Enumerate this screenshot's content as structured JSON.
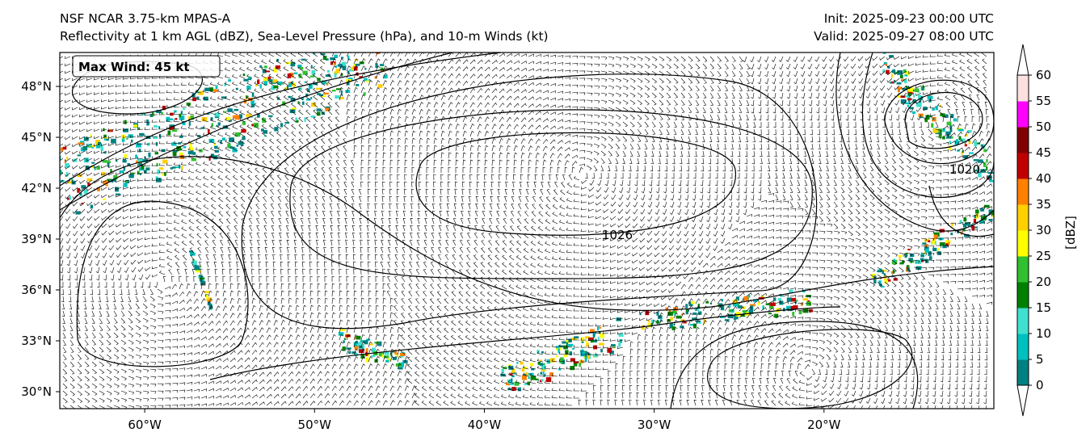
{
  "header": {
    "left_line1": "NSF NCAR 3.75-km MPAS-A",
    "left_line2": "Reflectivity at 1 km AGL (dBZ), Sea-Level Pressure (hPa), and 10-m Winds (kt)",
    "right_line1": "Init: 2025-09-23 00:00 UTC",
    "right_line2": "Valid: 2025-09-27 08:00 UTC"
  },
  "annotation": {
    "max_wind": "Max Wind: 45 kt"
  },
  "map": {
    "lon_range": [
      -65,
      -10
    ],
    "lat_range": [
      29,
      50
    ],
    "lon_ticks": [
      -60,
      -50,
      -40,
      -30,
      -20
    ],
    "lon_tick_labels": [
      "60°W",
      "50°W",
      "40°W",
      "30°W",
      "20°W"
    ],
    "lat_ticks": [
      30,
      33,
      36,
      39,
      42,
      45,
      48
    ],
    "lat_tick_labels": [
      "30°N",
      "33°N",
      "36°N",
      "39°N",
      "42°N",
      "45°N",
      "48°N"
    ],
    "isobar_label": "1026",
    "isobar_label_2": "1020"
  },
  "colorbar": {
    "label": "[dBZ]",
    "levels": [
      0,
      5,
      10,
      15,
      20,
      25,
      30,
      35,
      40,
      45,
      50,
      55,
      60
    ],
    "tick_labels": [
      "0",
      "5",
      "10",
      "15",
      "20",
      "25",
      "30",
      "35",
      "40",
      "45",
      "50",
      "55",
      "60"
    ],
    "colors": [
      "#008080",
      "#00c0c0",
      "#40e0d0",
      "#008000",
      "#30c030",
      "#ffff00",
      "#ffd000",
      "#ff8000",
      "#c00000",
      "#800000",
      "#ff00ff",
      "#ffe0e0"
    ],
    "extend": "both"
  },
  "colors": {
    "land_edge": "#000000",
    "barb": "#000000",
    "isobar": "#000000",
    "no_echo": "#ffffff"
  }
}
